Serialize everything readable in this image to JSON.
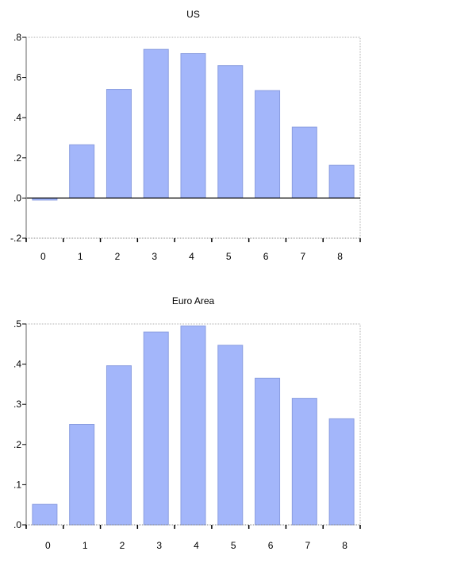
{
  "chart_data": [
    {
      "type": "bar",
      "title": "US",
      "categories": [
        "0",
        "1",
        "2",
        "3",
        "4",
        "5",
        "6",
        "7",
        "8"
      ],
      "values": [
        -0.01,
        0.265,
        0.541,
        0.74,
        0.719,
        0.659,
        0.535,
        0.353,
        0.163
      ],
      "ylim": [
        -0.2,
        0.8
      ],
      "yticks": [
        -0.2,
        0.0,
        0.2,
        0.4,
        0.6,
        0.8
      ],
      "ytick_labels": [
        "-.2",
        ".0",
        ".2",
        ".4",
        ".6",
        ".8"
      ],
      "zero_line": true,
      "grid": false,
      "bar_color": "#a3b6fa",
      "bar_edge_color": "#8a9de0"
    },
    {
      "type": "bar",
      "title": "Euro Area",
      "categories": [
        "0",
        "1",
        "2",
        "3",
        "4",
        "5",
        "6",
        "7",
        "8"
      ],
      "values": [
        0.051,
        0.25,
        0.396,
        0.48,
        0.495,
        0.447,
        0.365,
        0.315,
        0.264
      ],
      "ylim": [
        0.0,
        0.5
      ],
      "yticks": [
        0.0,
        0.1,
        0.2,
        0.3,
        0.4,
        0.5
      ],
      "ytick_labels": [
        ".0",
        ".1",
        ".2",
        ".3",
        ".4",
        ".5"
      ],
      "zero_line": false,
      "grid": false,
      "bar_color": "#a3b6fa",
      "bar_edge_color": "#8a9de0"
    }
  ]
}
